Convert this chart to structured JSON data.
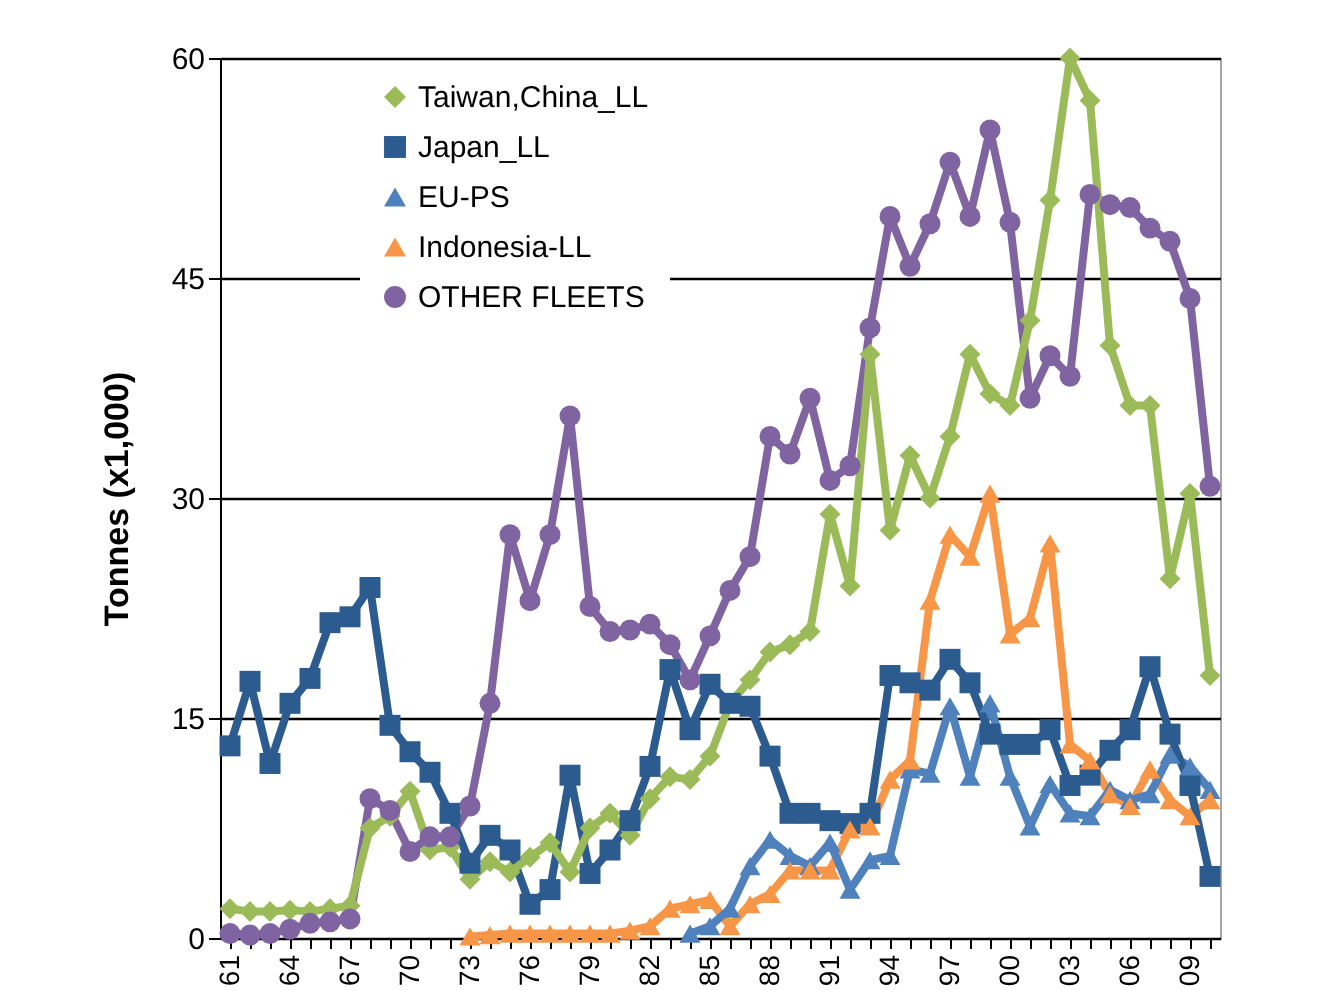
{
  "chart_data": {
    "type": "line",
    "ylabel": "Tonnes (x1,000)",
    "categories": [
      "61",
      null,
      null,
      "64",
      null,
      null,
      "67",
      null,
      null,
      "70",
      null,
      null,
      "73",
      null,
      null,
      "76",
      null,
      null,
      "79",
      null,
      null,
      "82",
      null,
      null,
      "85",
      null,
      null,
      "88",
      null,
      null,
      "91",
      null,
      null,
      "94",
      null,
      null,
      "97",
      null,
      null,
      "00",
      null,
      null,
      "03",
      null,
      null,
      "06",
      null,
      null,
      "09",
      null
    ],
    "ylim": [
      0,
      60
    ],
    "yticks": [
      0,
      15,
      30,
      45,
      60
    ],
    "grid": "y",
    "legend": "top left",
    "series": [
      {
        "name": "Taiwan,China_LL",
        "color": "#9bbb59",
        "marker": "diamond",
        "values": [
          2.0,
          1.8,
          1.8,
          1.9,
          1.8,
          2.0,
          2.2,
          7.5,
          8.3,
          10.0,
          6.0,
          6.2,
          4.0,
          5.2,
          4.5,
          5.5,
          6.5,
          4.5,
          7.5,
          8.5,
          7.0,
          9.5,
          11.0,
          10.8,
          12.4,
          16.0,
          17.6,
          19.5,
          20.0,
          20.9,
          28.9,
          24.0,
          39.8,
          27.8,
          32.9,
          30.0,
          34.2,
          39.8,
          37.1,
          36.3,
          42.1,
          50.3,
          60,
          57.1,
          40.4,
          36.3,
          36.3,
          24.5,
          30.3,
          17.9
        ]
      },
      {
        "name": "Japan_LL",
        "color": "#2c5b8f",
        "marker": "square",
        "values": [
          13.1,
          17.5,
          11.9,
          16.0,
          17.7,
          21.5,
          21.9,
          23.9,
          14.5,
          12.7,
          11.3,
          8.5,
          5.1,
          7.0,
          6.0,
          2.3,
          3.3,
          11.1,
          4.4,
          6.0,
          8.0,
          11.7,
          18.3,
          14.2,
          17.3,
          16.0,
          15.8,
          12.4,
          8.5,
          8.5,
          8.0,
          7.8,
          8.5,
          17.9,
          17.4,
          16.9,
          19.0,
          17.4,
          13.9,
          13.2,
          13.2,
          14.2,
          10.4,
          11.1,
          12.8,
          14.2,
          18.5,
          13.9,
          10.4,
          4.2
        ]
      },
      {
        "name": "EU-PS",
        "color": "#4f81bd",
        "marker": "triangle",
        "values": [
          null,
          null,
          null,
          null,
          null,
          null,
          null,
          null,
          null,
          null,
          null,
          null,
          null,
          null,
          null,
          null,
          null,
          null,
          null,
          null,
          null,
          null,
          null,
          0.3,
          0.8,
          2.0,
          4.9,
          6.7,
          5.6,
          4.9,
          6.5,
          3.3,
          5.3,
          5.6,
          11.5,
          11.2,
          15.8,
          11.0,
          16.0,
          11.0,
          7.6,
          10.5,
          8.5,
          8.3,
          10.1,
          9.4,
          9.8,
          12.5,
          11.7,
          10.1
        ]
      },
      {
        "name": "Indonesia-LL",
        "color": "#f79646",
        "marker": "triangle",
        "values": [
          null,
          null,
          null,
          null,
          null,
          null,
          null,
          null,
          null,
          null,
          null,
          null,
          0.1,
          0.2,
          0.3,
          0.3,
          0.3,
          0.3,
          0.3,
          0.3,
          0.5,
          0.8,
          2.0,
          2.3,
          2.6,
          0.8,
          2.3,
          3.0,
          4.6,
          4.6,
          4.6,
          7.4,
          7.6,
          10.8,
          12.1,
          23.0,
          27.5,
          26.0,
          30.3,
          20.7,
          21.8,
          26.9,
          13.2,
          12.1,
          9.8,
          9.0,
          11.5,
          9.4,
          8.3,
          9.4
        ]
      },
      {
        "name": "OTHER FLEETS",
        "color": "#8064a2",
        "marker": "circle",
        "values": [
          0.3,
          0.2,
          0.3,
          0.6,
          1.0,
          1.1,
          1.3,
          9.5,
          8.7,
          5.9,
          6.9,
          6.9,
          9.0,
          16.0,
          27.5,
          23.0,
          27.5,
          35.6,
          22.6,
          20.9,
          21.0,
          21.4,
          20.0,
          17.6,
          20.6,
          23.7,
          26.0,
          34.2,
          33.0,
          36.8,
          31.2,
          32.2,
          41.6,
          49.2,
          45.8,
          48.7,
          52.9,
          49.2,
          55.1,
          48.8,
          36.8,
          39.7,
          38.3,
          50.7,
          50.0,
          49.8,
          48.4,
          47.5,
          43.6,
          30.8
        ]
      }
    ]
  }
}
